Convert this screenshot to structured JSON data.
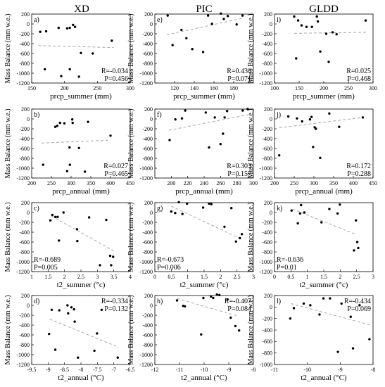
{
  "column_titles": [
    "XD",
    "PIC",
    "GLDD"
  ],
  "row_xlabels": [
    "prcp_summer (mm)",
    "prcp_annual (mm)",
    "t2_summer (°c)",
    "t2_annual (°C)"
  ],
  "ylabel": "Mass Balance (mm w.e.)",
  "colors": {
    "points": "#000000",
    "trend": "#a6a6a6",
    "axis": "#000000"
  },
  "chart_data": [
    {
      "panel": "a)",
      "type": "scatter",
      "row": 0,
      "col": 0,
      "xlim": [
        150,
        300
      ],
      "xticks": [
        150,
        200,
        250,
        300
      ],
      "ylim": [
        -1200,
        200
      ],
      "yticks": [
        200,
        0,
        -200,
        -400,
        -600,
        -800,
        -1000,
        -1200
      ],
      "x": [
        163,
        172,
        191,
        204,
        208,
        213,
        216,
        225,
        243,
        272,
        208,
        170,
        195,
        222
      ],
      "y": [
        -160,
        -150,
        -80,
        -90,
        -80,
        -20,
        -60,
        -590,
        -600,
        -340,
        -920,
        -920,
        -1060,
        -1070
      ],
      "trend": [
        [
          160,
          -440
        ],
        [
          275,
          -480
        ]
      ],
      "stats": {
        "R": "R=-0.034",
        "P": "P=0.456"
      },
      "stats_pos": "bottom-right"
    },
    {
      "panel": "e)",
      "type": "scatter",
      "row": 0,
      "col": 1,
      "xlim": [
        100,
        200
      ],
      "xticks": [
        120,
        140,
        160,
        180
      ],
      "ylim": [
        -1200,
        200
      ],
      "yticks": [
        200,
        0,
        -200,
        -400,
        -600,
        -800,
        -1000,
        -1200
      ],
      "x": [
        113,
        118,
        127,
        132,
        138,
        149,
        154,
        158,
        167,
        170,
        174,
        183,
        189
      ],
      "y": [
        170,
        -430,
        -120,
        -290,
        -510,
        -570,
        170,
        0,
        210,
        100,
        160,
        -10,
        170
      ],
      "trend": [
        [
          112,
          -220
        ],
        [
          190,
          120
        ]
      ],
      "stats": {
        "R": "R=0.430",
        "P": "P=0.071"
      },
      "stats_pos": "bottom-right"
    },
    {
      "panel": "i)",
      "type": "scatter",
      "row": 0,
      "col": 2,
      "xlim": [
        100,
        300
      ],
      "xticks": [
        100,
        150,
        200,
        250,
        300
      ],
      "ylim": [
        -1200,
        200
      ],
      "yticks": [
        200,
        0,
        -200,
        -400,
        -600,
        -800,
        -1000,
        -1200
      ],
      "x": [
        140,
        148,
        155,
        165,
        176,
        186,
        188,
        205,
        210,
        218,
        226,
        285,
        144,
        193
      ],
      "y": [
        150,
        70,
        -30,
        -60,
        -60,
        150,
        50,
        -200,
        -770,
        -170,
        -210,
        70,
        -700,
        -560
      ],
      "trend": [
        [
          140,
          -190
        ],
        [
          290,
          -170
        ]
      ],
      "stats": {
        "R": "R=0.025",
        "P": "P=0.468"
      },
      "stats_pos": "bottom-right"
    },
    {
      "panel": "b)",
      "type": "scatter",
      "row": 1,
      "col": 0,
      "xlim": [
        200,
        450
      ],
      "xticks": [
        200,
        250,
        300,
        350,
        400,
        450
      ],
      "ylim": [
        -1200,
        200
      ],
      "yticks": [
        200,
        0,
        -200,
        -400,
        -600,
        -800,
        -1000,
        -1200
      ],
      "x": [
        260,
        265,
        272,
        283,
        296,
        303,
        304,
        320,
        343,
        400,
        297,
        229,
        290,
        335
      ],
      "y": [
        -160,
        -140,
        -80,
        -90,
        -580,
        -10,
        -80,
        -590,
        -60,
        -340,
        -930,
        -930,
        -1060,
        -1070
      ],
      "trend": [
        [
          225,
          -490
        ],
        [
          400,
          -430
        ]
      ],
      "stats": {
        "R": "R=0.027",
        "P": "P=0.465"
      },
      "stats_pos": "bottom-right"
    },
    {
      "panel": "f)",
      "type": "scatter",
      "row": 1,
      "col": 1,
      "xlim": [
        180,
        300
      ],
      "xticks": [
        200,
        220,
        240,
        260,
        280,
        300
      ],
      "ylim": [
        -1200,
        200
      ],
      "yticks": [
        200,
        0,
        -200,
        -400,
        -600,
        -800,
        -1000,
        -1200
      ],
      "x": [
        198,
        205,
        213,
        217,
        242,
        246,
        253,
        260,
        265,
        268,
        287,
        293,
        263
      ],
      "y": [
        -430,
        -10,
        10,
        170,
        130,
        -580,
        30,
        -510,
        30,
        160,
        170,
        200,
        -300
      ],
      "trend": [
        [
          197,
          -230
        ],
        [
          295,
          90
        ]
      ],
      "stats": {
        "R": "R=0.303",
        "P": "P=0.157"
      },
      "stats_pos": "bottom-right"
    },
    {
      "panel": "j)",
      "type": "scatter",
      "row": 1,
      "col": 2,
      "xlim": [
        200,
        450
      ],
      "xticks": [
        200,
        250,
        300,
        350,
        400,
        450
      ],
      "ylim": [
        -1200,
        200
      ],
      "yticks": [
        200,
        0,
        -200,
        -400,
        -600,
        -800,
        -1000,
        -1200
      ],
      "x": [
        212,
        235,
        257,
        270,
        290,
        298,
        302,
        305,
        316,
        339,
        424,
        364,
        294
      ],
      "y": [
        -740,
        50,
        10,
        -50,
        -10,
        -570,
        -170,
        -200,
        -790,
        110,
        30,
        -160,
        40
      ],
      "trend": [
        [
          212,
          -180
        ],
        [
          424,
          30
        ]
      ],
      "stats": {
        "R": "R=0.172",
        "P": "P=0.288"
      },
      "stats_pos": "bottom-right"
    },
    {
      "panel": "c)",
      "type": "scatter",
      "row": 2,
      "col": 0,
      "xlim": [
        1,
        4
      ],
      "xticks": [
        1.0,
        1.5,
        2.0,
        2.5,
        3.0,
        3.5,
        4.0
      ],
      "ylim": [
        -1200,
        200
      ],
      "yticks": [
        200,
        0,
        -200,
        -400,
        -600,
        -800,
        -1000,
        -1200
      ],
      "x": [
        1.57,
        1.63,
        1.72,
        1.79,
        1.83,
        1.97,
        2.39,
        2.75,
        3.08,
        3.27,
        3.39,
        3.48,
        2.38,
        3.42
      ],
      "y": [
        -160,
        -50,
        -90,
        -90,
        -570,
        0,
        -580,
        -100,
        -1070,
        -150,
        -880,
        -900,
        -340,
        -1070
      ],
      "trend": [
        [
          1.6,
          -70
        ],
        [
          3.5,
          -780
        ]
      ],
      "stats": {
        "R": "R=-0.689",
        "P": "P=0.005"
      },
      "stats_pos": "bottom-left"
    },
    {
      "panel": "g)",
      "type": "scatter",
      "row": 2,
      "col": 1,
      "xlim": [
        0,
        3
      ],
      "xticks": [
        0.0,
        0.5,
        1.0,
        1.5,
        2.0,
        2.5,
        3.0
      ],
      "ylim": [
        -1200,
        200
      ],
      "yticks": [
        200,
        0,
        -200,
        -400,
        -600,
        -800,
        -1000,
        -1200
      ],
      "x": [
        0.5,
        0.62,
        0.73,
        0.84,
        0.98,
        1.47,
        1.65,
        1.72,
        2.12,
        2.33,
        2.47,
        2.59,
        2.65
      ],
      "y": [
        20,
        -10,
        210,
        -30,
        180,
        100,
        180,
        170,
        -290,
        90,
        -590,
        -520,
        -440
      ],
      "trend": [
        [
          0.5,
          130
        ],
        [
          2.6,
          -530
        ]
      ],
      "stats": {
        "R": "R=-0.673",
        "P": "P=0.006"
      },
      "stats_pos": "bottom-left"
    },
    {
      "panel": "k)",
      "type": "scatter",
      "row": 2,
      "col": 2,
      "xlim": [
        0,
        3
      ],
      "xticks": [
        0.0,
        0.5,
        1.0,
        1.5,
        2.0,
        2.5,
        3.0
      ],
      "ylim": [
        -1200,
        200
      ],
      "yticks": [
        200,
        0,
        -200,
        -400,
        -600,
        -800,
        -1000,
        -1200
      ],
      "x": [
        0.52,
        0.71,
        0.78,
        0.81,
        0.91,
        1.43,
        1.67,
        1.92,
        1.99,
        2.42,
        2.48,
        2.52,
        2.55
      ],
      "y": [
        40,
        -220,
        -20,
        150,
        0,
        -200,
        70,
        -20,
        160,
        -770,
        -160,
        -600,
        -720
      ],
      "trend": [
        [
          0.55,
          70
        ],
        [
          2.5,
          -450
        ]
      ],
      "stats": {
        "R": "R=-0.636",
        "P": "P=0.01"
      },
      "stats_pos": "bottom-left"
    },
    {
      "panel": "d)",
      "type": "scatter",
      "row": 3,
      "col": 0,
      "xlim": [
        -9.5,
        -6.5
      ],
      "xticks": [
        -9.5,
        -9.0,
        -8.5,
        -8.0,
        -7.5,
        -7.0,
        -6.5
      ],
      "ylim": [
        -1200,
        200
      ],
      "yticks": [
        200,
        0,
        -200,
        -400,
        -600,
        -800,
        -1000,
        -1200
      ],
      "x": [
        -8.97,
        -8.89,
        -8.66,
        -8.41,
        -8.29,
        -8.21,
        -8.19,
        -8.09,
        -7.59,
        -7.51,
        -7.37,
        -8.78,
        -8.39,
        -6.88
      ],
      "y": [
        -580,
        -90,
        -100,
        0,
        -40,
        -80,
        -330,
        -1060,
        -920,
        -570,
        -90,
        -900,
        -160,
        -1060
      ],
      "trend": [
        [
          -8.95,
          -280
        ],
        [
          -6.85,
          -850
        ]
      ],
      "stats": {
        "R": "R=-0.334",
        "P": "P=0.132"
      },
      "stats_pos": "top-right"
    },
    {
      "panel": "h)",
      "type": "scatter",
      "row": 3,
      "col": 1,
      "xlim": [
        -12,
        -8
      ],
      "xticks": [
        -12,
        -11,
        -10,
        -9,
        -8
      ],
      "ylim": [
        -1200,
        200
      ],
      "yticks": [
        200,
        0,
        -200,
        -400,
        -600,
        -800,
        -1000,
        -1200
      ],
      "x": [
        -11.1,
        -10.85,
        -10.78,
        -10.12,
        -10.03,
        -9.72,
        -9.63,
        -9.48,
        -9.38,
        -9.05,
        -8.92,
        -8.73,
        -8.58
      ],
      "y": [
        100,
        -10,
        -20,
        -590,
        150,
        180,
        150,
        220,
        210,
        120,
        -250,
        -420,
        -510
      ],
      "trend": [
        [
          -11.1,
          140
        ],
        [
          -8.6,
          -220
        ]
      ],
      "stats": {
        "R": "R=-0.407",
        "P": "P=0.084"
      },
      "stats_pos": "top-right"
    },
    {
      "panel": "l)",
      "type": "scatter",
      "row": 3,
      "col": 2,
      "xlim": [
        -11,
        -8
      ],
      "xticks": [
        -11,
        -10,
        -9,
        -8
      ],
      "ylim": [
        -1000,
        200
      ],
      "yticks": [
        200,
        0,
        -200,
        -400,
        -600,
        -800,
        -1000
      ],
      "x": [
        -10.52,
        -10.41,
        -10.11,
        -9.91,
        -9.63,
        -9.51,
        -9.31,
        -9.07,
        -8.96,
        -8.68,
        -8.61,
        -8.41,
        -8.11
      ],
      "y": [
        -200,
        -20,
        60,
        30,
        -130,
        150,
        150,
        -780,
        60,
        -170,
        -720,
        30,
        -560
      ],
      "trend": [
        [
          -10.5,
          60
        ],
        [
          -8.1,
          -310
        ]
      ],
      "stats": {
        "R": "R=-0.434",
        "P": "P=0.069"
      },
      "stats_pos": "top-right"
    }
  ]
}
